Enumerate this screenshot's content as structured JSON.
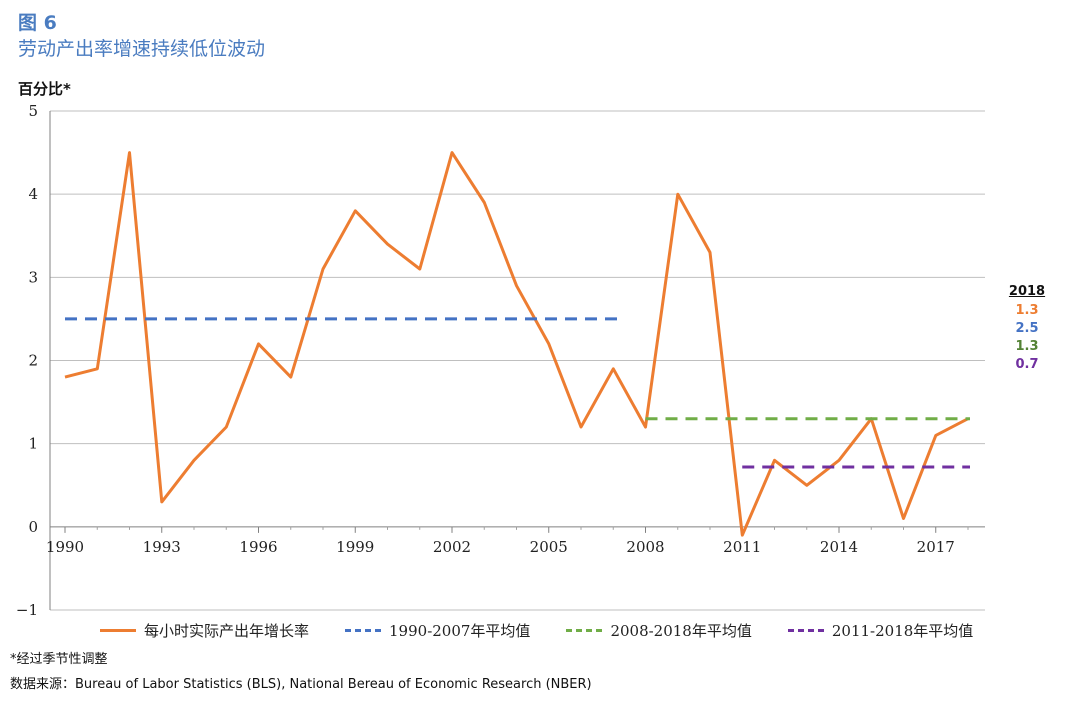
{
  "figure_label": "图 6",
  "title": "劳动产出率增速持续低位波动",
  "ylabel": "百分比*",
  "footnote": "*经过季节性调整",
  "source": "数据来源：Bureau of Labor Statistics (BLS), National Bereau of Economic Research (NBER)",
  "side_panel": {
    "title": "2018",
    "values": [
      {
        "text": "1.3",
        "color": "#ed7d31"
      },
      {
        "text": "2.5",
        "color": "#4472c4"
      },
      {
        "text": "1.3",
        "color": "#548235"
      },
      {
        "text": "0.7",
        "color": "#7030a0"
      }
    ]
  },
  "legend": [
    {
      "label": "每小时实际产出年增长率",
      "color": "#ed7d31",
      "style": "solid"
    },
    {
      "label": "1990-2007年平均值",
      "color": "#4472c4",
      "style": "dashed"
    },
    {
      "label": "2008-2018年平均值",
      "color": "#70ad47",
      "style": "dashed"
    },
    {
      "label": "2011-2018年平均值",
      "color": "#7030a0",
      "style": "dashed"
    }
  ],
  "chart_data": {
    "type": "line",
    "title": "劳动产出率增速持续低位波动",
    "ylabel": "百分比*",
    "xlabel": "",
    "ylim": [
      -1,
      5
    ],
    "xlim": [
      1990,
      2018
    ],
    "y_ticks": [
      "−1",
      "0",
      "1",
      "2",
      "3",
      "4",
      "5"
    ],
    "x_ticks": [
      "1990",
      "1993",
      "1996",
      "1999",
      "2002",
      "2005",
      "2008",
      "2011",
      "2014",
      "2017"
    ],
    "grid": "horizontal",
    "legend_position": "bottom",
    "series": [
      {
        "name": "每小时实际产出年增长率",
        "color": "#ed7d31",
        "style": "solid",
        "x": [
          1990,
          1991,
          1992,
          1993,
          1994,
          1995,
          1996,
          1997,
          1998,
          1999,
          2000,
          2001,
          2002,
          2003,
          2004,
          2005,
          2006,
          2007,
          2008,
          2009,
          2010,
          2011,
          2012,
          2013,
          2014,
          2015,
          2016,
          2017,
          2018
        ],
        "y": [
          1.8,
          1.9,
          4.5,
          0.3,
          0.8,
          1.2,
          2.2,
          1.8,
          3.1,
          3.8,
          3.4,
          3.1,
          4.5,
          3.9,
          2.9,
          2.2,
          1.2,
          1.9,
          1.2,
          4.0,
          3.3,
          -0.1,
          0.8,
          0.5,
          0.8,
          1.3,
          0.1,
          1.1,
          1.3
        ]
      },
      {
        "name": "1990-2007年平均值",
        "color": "#4472c4",
        "style": "dashed",
        "x": [
          1990,
          2007
        ],
        "y": [
          2.5,
          2.5
        ]
      },
      {
        "name": "2008-2018年平均值",
        "color": "#70ad47",
        "style": "dashed",
        "x": [
          2008,
          2018
        ],
        "y": [
          1.3,
          1.3
        ]
      },
      {
        "name": "2011-2018年平均值",
        "color": "#7030a0",
        "style": "dashed",
        "x": [
          2011,
          2018
        ],
        "y": [
          0.72,
          0.72
        ]
      }
    ]
  }
}
